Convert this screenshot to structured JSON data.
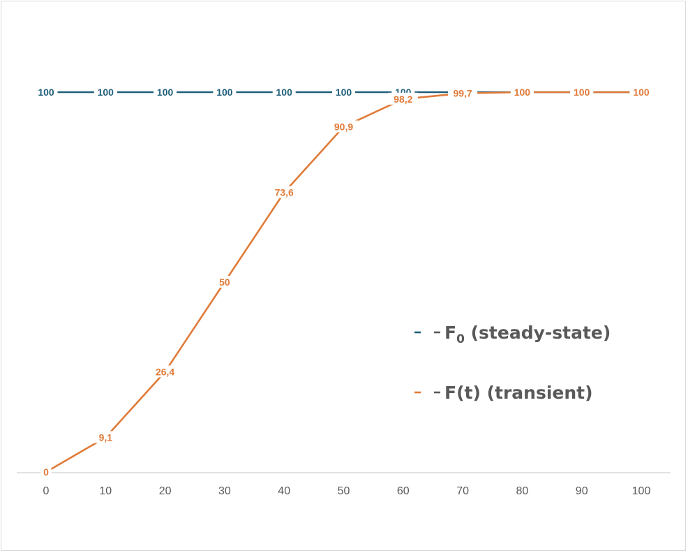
{
  "chart_data": {
    "type": "line",
    "x": [
      0,
      10,
      20,
      30,
      40,
      50,
      60,
      70,
      80,
      90,
      100
    ],
    "ylim": [
      0,
      100
    ],
    "xlim": [
      0,
      100
    ],
    "grid": false,
    "legend_position": "right",
    "series": [
      {
        "name": "F₀ (steady-state)",
        "name_main": "F",
        "name_sub": "0",
        "name_rest": " (steady-state)",
        "color": "#1f5f7a",
        "values": [
          100,
          100,
          100,
          100,
          100,
          100,
          100,
          100,
          100,
          100,
          100
        ],
        "labels": [
          "100",
          "100",
          "100",
          "100",
          "100",
          "100",
          "100",
          "100",
          "100",
          "100",
          "100"
        ]
      },
      {
        "name": "F(t) (transient)",
        "color": "#e07b39",
        "values": [
          0,
          9.1,
          26.4,
          50,
          73.6,
          90.9,
          98.2,
          99.7,
          100,
          100,
          100
        ],
        "labels": [
          "0",
          "9,1",
          "26,4",
          "50",
          "73,6",
          "90,9",
          "98,2",
          "99,7",
          "100",
          "100",
          "100"
        ]
      }
    ],
    "x_tick_labels": [
      "0",
      "10",
      "20",
      "30",
      "40",
      "50",
      "60",
      "70",
      "80",
      "90",
      "100"
    ]
  }
}
